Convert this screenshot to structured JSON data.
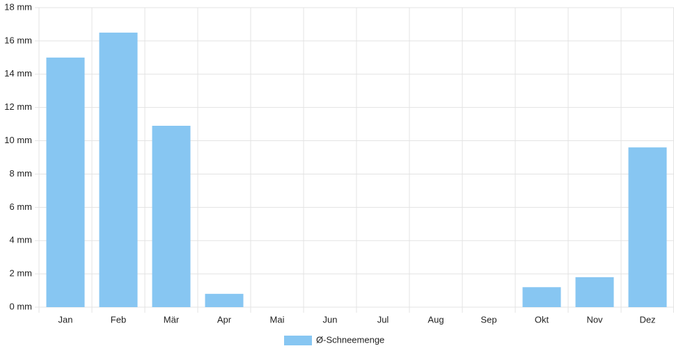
{
  "chart_data": {
    "type": "bar",
    "categories": [
      "Jan",
      "Feb",
      "Mär",
      "Apr",
      "Mai",
      "Jun",
      "Jul",
      "Aug",
      "Sep",
      "Okt",
      "Nov",
      "Dez"
    ],
    "series": [
      {
        "name": "Ø-Schneemenge",
        "color": "#87c6f2",
        "values": [
          15.0,
          16.5,
          10.9,
          0.8,
          0,
          0,
          0,
          0,
          0,
          1.2,
          1.8,
          9.6
        ]
      }
    ],
    "ylim": [
      0,
      18
    ],
    "yticks": [
      {
        "value": 0,
        "label": "0 mm"
      },
      {
        "value": 2,
        "label": "2 mm"
      },
      {
        "value": 4,
        "label": "4 mm"
      },
      {
        "value": 6,
        "label": "6 mm"
      },
      {
        "value": 8,
        "label": "8 mm"
      },
      {
        "value": 10,
        "label": "10 mm"
      },
      {
        "value": 12,
        "label": "12 mm"
      },
      {
        "value": 14,
        "label": "14 mm"
      },
      {
        "value": 16,
        "label": "16 mm"
      },
      {
        "value": 18,
        "label": "18 mm"
      }
    ],
    "grid": true,
    "legend": "bottom"
  }
}
